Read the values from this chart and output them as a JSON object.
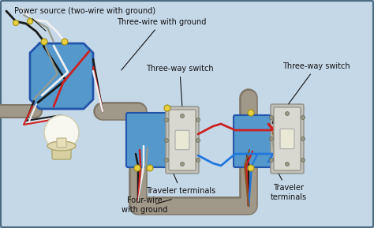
{
  "bg_color": "#b8d0e0",
  "bg_inner": "#c5d8e8",
  "border_color": "#4a6a80",
  "box_color": "#5599cc",
  "box_edge": "#2255aa",
  "box_face_light": "#6aaedc",
  "switch_color": "#d8d8d0",
  "switch_edge": "#999990",
  "switch_toggle": "#e8e8d5",
  "wire_black": "#1a1a1a",
  "wire_red": "#cc2222",
  "wire_white": "#f0f0f0",
  "wire_blue": "#2277dd",
  "wire_gray": "#9a9a8a",
  "wire_brown": "#8B5520",
  "wire_bare": "#c8a040",
  "conduit_color": "#a09888",
  "conduit_edge": "#807868",
  "connector_fill": "#e8d040",
  "connector_edge": "#a09010",
  "labels": {
    "power_source": "Power source (two-wire with ground)",
    "three_wire": "Three-wire with ground",
    "four_wire": "Four-wire\nwith ground",
    "switch1": "Three-way switch",
    "switch2": "Three-way switch",
    "traveler1": "Traveler terminals",
    "traveler2": "Traveler\nterminals"
  },
  "label_fontsize": 7.0,
  "label_color": "#111111"
}
